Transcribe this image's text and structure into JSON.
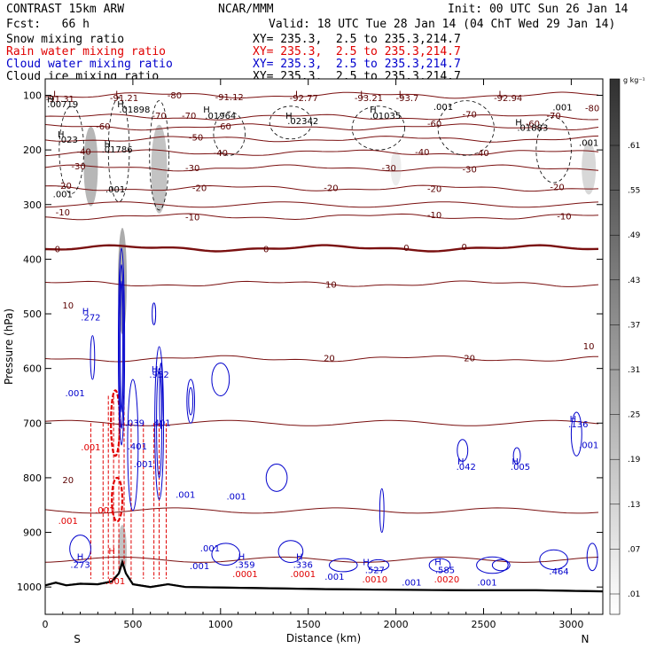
{
  "header": {
    "model": "CONTRAST 15km ARW",
    "org": "NCAR/MMM",
    "init": "Init: 00 UTC Sun 26 Jan 14",
    "fcst": "Fcst:   66 h",
    "valid": "Valid: 18 UTC Tue 28 Jan 14 (04 ChT Wed 29 Jan 14)"
  },
  "fields": [
    {
      "name": "Snow mixing ratio",
      "xy": "XY= 235.3,  2.5 to 235.3,214.7",
      "color": "#000000"
    },
    {
      "name": "Rain water mixing ratio",
      "xy": "XY= 235.3,  2.5 to 235.3,214.7",
      "color": "#ff0000"
    },
    {
      "name": "Cloud water mixing ratio",
      "xy": "XY= 235.3,  2.5 to 235.3,214.7",
      "color": "#0000cc"
    },
    {
      "name": "Cloud ice mixing ratio",
      "xy": "XY= 235.3,  2.5 to 235.3,214.7",
      "color": "#000000"
    }
  ],
  "chart_data": {
    "type": "contour",
    "xlabel": "Distance (km)",
    "ylabel": "Pressure (hPa)",
    "xlim": [
      0,
      3180
    ],
    "ylim": [
      1050,
      70
    ],
    "x_ticks": [
      "0",
      "500",
      "1000",
      "1500",
      "2000",
      "2500",
      "3000"
    ],
    "x_tick_values": [
      0,
      500,
      1000,
      1500,
      2000,
      2500,
      3000
    ],
    "y_ticks": [
      "100",
      "200",
      "300",
      "400",
      "500",
      "600",
      "700",
      "800",
      "900",
      "1000"
    ],
    "y_tick_values": [
      100,
      200,
      300,
      400,
      500,
      600,
      700,
      800,
      900,
      1000
    ],
    "x_end_labels": {
      "left": "S",
      "right": "N"
    },
    "colorbar": {
      "unit": "g kg⁻¹",
      "levels": [
        ".61",
        ".55",
        ".49",
        ".43",
        ".37",
        ".31",
        ".25",
        ".19",
        ".13",
        ".07",
        ".01"
      ],
      "level_values": [
        0.61,
        0.55,
        0.49,
        0.43,
        0.37,
        0.31,
        0.25,
        0.19,
        0.13,
        0.07,
        0.01
      ]
    },
    "temperature_contours": [
      {
        "label": "-80",
        "p": 100
      },
      {
        "label": "-70",
        "p": 140
      },
      {
        "label": "-60",
        "p": 158
      },
      {
        "label": "-50",
        "p": 180
      },
      {
        "label": "-40",
        "p": 205
      },
      {
        "label": "-30",
        "p": 233
      },
      {
        "label": "-20",
        "p": 270
      },
      {
        "label": "-10",
        "p": 322
      },
      {
        "label": "0",
        "p": 380
      },
      {
        "label": "10",
        "p": 445
      },
      {
        "label": "20",
        "p": 582
      }
    ],
    "temperature_labels": [
      {
        "text": "-80",
        "x": 738,
        "p": 101
      },
      {
        "text": "-80",
        "x": 3120,
        "p": 124
      },
      {
        "text": "-70",
        "x": 650,
        "p": 138
      },
      {
        "text": "-70",
        "x": 820,
        "p": 138
      },
      {
        "text": "-70",
        "x": 2420,
        "p": 136
      },
      {
        "text": "-70",
        "x": 2900,
        "p": 138
      },
      {
        "text": "-60",
        "x": 330,
        "p": 158
      },
      {
        "text": "-60",
        "x": 1020,
        "p": 158
      },
      {
        "text": "-60",
        "x": 2220,
        "p": 153
      },
      {
        "text": "-60",
        "x": 2780,
        "p": 153
      },
      {
        "text": "-50",
        "x": 860,
        "p": 178
      },
      {
        "text": "-40",
        "x": 220,
        "p": 204
      },
      {
        "text": "-40",
        "x": 1000,
        "p": 206
      },
      {
        "text": "-40",
        "x": 2150,
        "p": 205
      },
      {
        "text": "-40",
        "x": 2490,
        "p": 206
      },
      {
        "text": "-30",
        "x": 190,
        "p": 231
      },
      {
        "text": "-30",
        "x": 840,
        "p": 234
      },
      {
        "text": "-30",
        "x": 1960,
        "p": 234
      },
      {
        "text": "-30",
        "x": 2420,
        "p": 236
      },
      {
        "text": "-20",
        "x": 110,
        "p": 266
      },
      {
        "text": "-20",
        "x": 880,
        "p": 270
      },
      {
        "text": "-20",
        "x": 1630,
        "p": 270
      },
      {
        "text": "-20",
        "x": 2220,
        "p": 272
      },
      {
        "text": "-20",
        "x": 2920,
        "p": 269
      },
      {
        "text": "-10",
        "x": 100,
        "p": 315
      },
      {
        "text": "-10",
        "x": 840,
        "p": 324
      },
      {
        "text": "-10",
        "x": 2220,
        "p": 320
      },
      {
        "text": "-10",
        "x": 2960,
        "p": 322
      },
      {
        "text": "0",
        "x": 70,
        "p": 382
      },
      {
        "text": "0",
        "x": 1260,
        "p": 382
      },
      {
        "text": "0",
        "x": 2060,
        "p": 380
      },
      {
        "text": "0",
        "x": 2390,
        "p": 378
      },
      {
        "text": "10",
        "x": 130,
        "p": 485
      },
      {
        "text": "10",
        "x": 1630,
        "p": 447
      },
      {
        "text": "10",
        "x": 3100,
        "p": 560
      },
      {
        "text": "20",
        "x": 130,
        "p": 805
      },
      {
        "text": "20",
        "x": 1620,
        "p": 582
      },
      {
        "text": "20",
        "x": 2420,
        "p": 582
      }
    ],
    "minima_labels": [
      {
        "text": "L",
        "x": 60,
        "p": 98
      },
      {
        "text": "-91.31",
        "x": 85,
        "p": 107
      },
      {
        "text": "L",
        "x": 415,
        "p": 98
      },
      {
        "text": "-91.21",
        "x": 450,
        "p": 106
      },
      {
        "text": "-91.12",
        "x": 1050,
        "p": 104
      },
      {
        "text": "L",
        "x": 1440,
        "p": 98
      },
      {
        "text": "-92.77",
        "x": 1475,
        "p": 106
      },
      {
        "text": "L",
        "x": 1810,
        "p": 98
      },
      {
        "text": "-93.21",
        "x": 1845,
        "p": 106
      },
      {
        "text": "L",
        "x": 2030,
        "p": 98
      },
      {
        "text": "-93.7",
        "x": 2065,
        "p": 106
      },
      {
        "text": "L",
        "x": 2600,
        "p": 98
      },
      {
        "text": "-92.94",
        "x": 2640,
        "p": 106
      }
    ],
    "snow_labels": [
      {
        "text": "H",
        "x": 30,
        "p": 108
      },
      {
        "text": ".00719",
        "x": 100,
        "p": 117
      },
      {
        "text": "H",
        "x": 430,
        "p": 117
      },
      {
        "text": ".01898",
        "x": 510,
        "p": 127
      },
      {
        "text": "H",
        "x": 920,
        "p": 127
      },
      {
        "text": ".01964",
        "x": 1000,
        "p": 138
      },
      {
        "text": "H",
        "x": 1390,
        "p": 138
      },
      {
        "text": ".02342",
        "x": 1470,
        "p": 148
      },
      {
        "text": "H",
        "x": 1870,
        "p": 127
      },
      {
        "text": ".01035",
        "x": 1940,
        "p": 138
      },
      {
        "text": ".001",
        "x": 2270,
        "p": 122
      },
      {
        "text": ".001",
        "x": 2950,
        "p": 123
      },
      {
        "text": "H",
        "x": 2700,
        "p": 150
      },
      {
        "text": ".01883",
        "x": 2780,
        "p": 160
      },
      {
        "text": "H",
        "x": 90,
        "p": 172
      },
      {
        "text": ".023",
        "x": 130,
        "p": 182
      },
      {
        "text": "H",
        "x": 355,
        "p": 190
      },
      {
        "text": ".01786",
        "x": 410,
        "p": 200
      },
      {
        "text": ".001",
        "x": 3100,
        "p": 188
      },
      {
        "text": ".001",
        "x": 100,
        "p": 282
      },
      {
        "text": ".001",
        "x": 400,
        "p": 273
      }
    ],
    "cloud_water_labels": [
      {
        "text": "H",
        "x": 230,
        "p": 496
      },
      {
        "text": ".272",
        "x": 260,
        "p": 507
      },
      {
        "text": ".001",
        "x": 170,
        "p": 646
      },
      {
        "text": "H",
        "x": 625,
        "p": 602
      },
      {
        "text": ".952",
        "x": 650,
        "p": 612
      },
      {
        "text": ".039",
        "x": 510,
        "p": 700
      },
      {
        "text": ".401",
        "x": 660,
        "p": 700
      },
      {
        "text": ".401",
        "x": 525,
        "p": 743
      },
      {
        "text": ".001",
        "x": 560,
        "p": 776
      },
      {
        "text": ".001",
        "x": 800,
        "p": 832
      },
      {
        "text": ".001",
        "x": 1090,
        "p": 835
      },
      {
        "text": "H",
        "x": 3010,
        "p": 693
      },
      {
        "text": ".136",
        "x": 3040,
        "p": 703
      },
      {
        "text": ".001",
        "x": 3100,
        "p": 741
      },
      {
        "text": "H",
        "x": 2370,
        "p": 771
      },
      {
        "text": ".042",
        "x": 2400,
        "p": 781
      },
      {
        "text": "H",
        "x": 2680,
        "p": 771
      },
      {
        "text": ".005",
        "x": 2710,
        "p": 781
      },
      {
        "text": "H",
        "x": 200,
        "p": 945
      },
      {
        "text": ".273",
        "x": 200,
        "p": 960
      },
      {
        "text": ".001",
        "x": 940,
        "p": 930
      },
      {
        "text": "H",
        "x": 1120,
        "p": 945
      },
      {
        "text": ".359",
        "x": 1140,
        "p": 960
      },
      {
        "text": "H",
        "x": 1450,
        "p": 945
      },
      {
        "text": ".336",
        "x": 1470,
        "p": 960
      },
      {
        "text": "H",
        "x": 1830,
        "p": 955
      },
      {
        "text": ".527",
        "x": 1880,
        "p": 970
      },
      {
        "text": "H",
        "x": 2240,
        "p": 955
      },
      {
        "text": ".585",
        "x": 2280,
        "p": 970
      },
      {
        "text": ".464",
        "x": 2930,
        "p": 972
      },
      {
        "text": ".001",
        "x": 1650,
        "p": 982
      },
      {
        "text": ".001",
        "x": 2090,
        "p": 992
      },
      {
        "text": ".001",
        "x": 2520,
        "p": 992
      },
      {
        "text": ".001",
        "x": 880,
        "p": 962
      }
    ],
    "rain_labels": [
      {
        "text": ".001",
        "x": 260,
        "p": 745
      },
      {
        "text": ".001",
        "x": 340,
        "p": 860
      },
      {
        "text": ".001",
        "x": 130,
        "p": 880
      },
      {
        "text": "H",
        "x": 380,
        "p": 935
      },
      {
        "text": ".0001",
        "x": 1140,
        "p": 977
      },
      {
        "text": ".0001",
        "x": 1470,
        "p": 977
      },
      {
        "text": ".0010",
        "x": 1880,
        "p": 987
      },
      {
        "text": ".0020",
        "x": 2290,
        "p": 987
      },
      {
        "text": ".001",
        "x": 400,
        "p": 990
      }
    ]
  }
}
